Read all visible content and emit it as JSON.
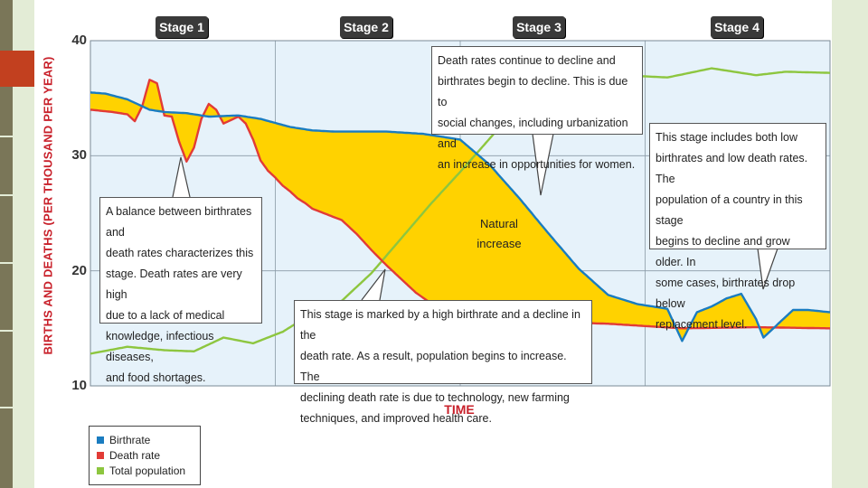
{
  "chart_data": {
    "type": "area",
    "title": "",
    "xlabel": "TIME",
    "ylabel": "BIRTHS AND DEATHS (PER THOUSAND PER YEAR)",
    "ylim": [
      10,
      40
    ],
    "yticks": [
      10,
      20,
      30,
      40
    ],
    "categories": [
      "Stage 1",
      "Stage 2",
      "Stage 3",
      "Stage 4"
    ],
    "grid": true,
    "legend_position": "bottom-left",
    "fill_label": "Natural increase",
    "series": [
      {
        "name": "Birthrate",
        "color": "#1a7cc0",
        "x": [
          0,
          0.02,
          0.05,
          0.08,
          0.1,
          0.13,
          0.16,
          0.2,
          0.23,
          0.27,
          0.3,
          0.33,
          0.36,
          0.4,
          0.45,
          0.5,
          0.52,
          0.54,
          0.58,
          0.62,
          0.66,
          0.7,
          0.74,
          0.78,
          0.8,
          0.82,
          0.84,
          0.86,
          0.88,
          0.9,
          0.91,
          0.93,
          0.95,
          0.97,
          1.0
        ],
        "values": [
          35.5,
          35.4,
          34.9,
          34,
          33.8,
          33.7,
          33.4,
          33.5,
          33.2,
          32.5,
          32.2,
          32.1,
          32.1,
          32.1,
          31.9,
          31.4,
          30.3,
          29.2,
          26.3,
          23.2,
          20.2,
          17.9,
          17.1,
          16.7,
          13.9,
          16.4,
          16.9,
          17.6,
          18,
          15.8,
          14.2,
          15.4,
          16.6,
          16.6,
          16.4
        ]
      },
      {
        "name": "Death rate",
        "color": "#e23b36",
        "x": [
          0,
          0.03,
          0.05,
          0.06,
          0.07,
          0.08,
          0.09,
          0.1,
          0.11,
          0.12,
          0.13,
          0.14,
          0.15,
          0.16,
          0.17,
          0.18,
          0.19,
          0.2,
          0.21,
          0.22,
          0.23,
          0.24,
          0.25,
          0.26,
          0.27,
          0.28,
          0.29,
          0.3,
          0.32,
          0.34,
          0.36,
          0.38,
          0.4,
          0.42,
          0.44,
          0.46,
          0.48,
          0.5,
          0.55,
          0.6,
          0.65,
          0.7,
          0.75,
          0.8,
          0.9,
          1.0
        ],
        "values": [
          34,
          33.8,
          33.6,
          33,
          34.3,
          36.6,
          36.3,
          33.5,
          33.4,
          31.2,
          29.5,
          30.7,
          33.2,
          34.5,
          34,
          32.8,
          33.1,
          33.4,
          32.8,
          31.4,
          29.6,
          28.7,
          28.1,
          27.4,
          26.9,
          26.3,
          25.9,
          25.4,
          24.9,
          24.4,
          23.2,
          21.8,
          20.5,
          19.3,
          18.1,
          17.2,
          16.7,
          16.2,
          15.9,
          15.7,
          15.5,
          15.4,
          15.2,
          15,
          15.1,
          15
        ]
      },
      {
        "name": "Total population",
        "color": "#8dc63f",
        "x": [
          0,
          0.05,
          0.1,
          0.14,
          0.18,
          0.22,
          0.26,
          0.3,
          0.34,
          0.38,
          0.42,
          0.46,
          0.5,
          0.54,
          0.56,
          0.6,
          0.66,
          0.72,
          0.78,
          0.84,
          0.9,
          0.94,
          1.0
        ],
        "values": [
          12.8,
          13.4,
          13.1,
          13,
          14.2,
          13.7,
          14.7,
          16.3,
          17.4,
          19.8,
          22.8,
          25.8,
          28.6,
          31.5,
          33,
          35,
          37.4,
          37,
          36.8,
          37.6,
          37,
          37.3,
          37.2
        ]
      }
    ]
  },
  "notes": {
    "stage1": [
      "A balance between birthrates and",
      "death rates characterizes this",
      "stage. Death rates are very high",
      "due to a lack of medical",
      "knowledge, infectious diseases,",
      "and food shortages."
    ],
    "stage2": [
      "This stage is marked by a high birthrate and a decline in the",
      "death rate. As a result, population begins to increase. The",
      "declining death rate is due to technology, new farming",
      "techniques, and improved health care."
    ],
    "stage3": [
      "Death rates continue to decline and",
      "birthrates begin to decline. This is due to",
      "social changes, including urbanization and",
      "an increase in opportunities for women."
    ],
    "stage4": [
      "This stage includes both low",
      "birthrates and low death rates. The",
      "population of a country in this stage",
      "begins to decline and grow older. In",
      "some cases, birthrates drop below",
      "replacement level."
    ]
  },
  "fill_label_lines": [
    "Natural",
    "increase"
  ],
  "colors": {
    "fill": "#ffd200",
    "plot_bg": "#e6f2fa",
    "accent_red": "#c8202a"
  }
}
